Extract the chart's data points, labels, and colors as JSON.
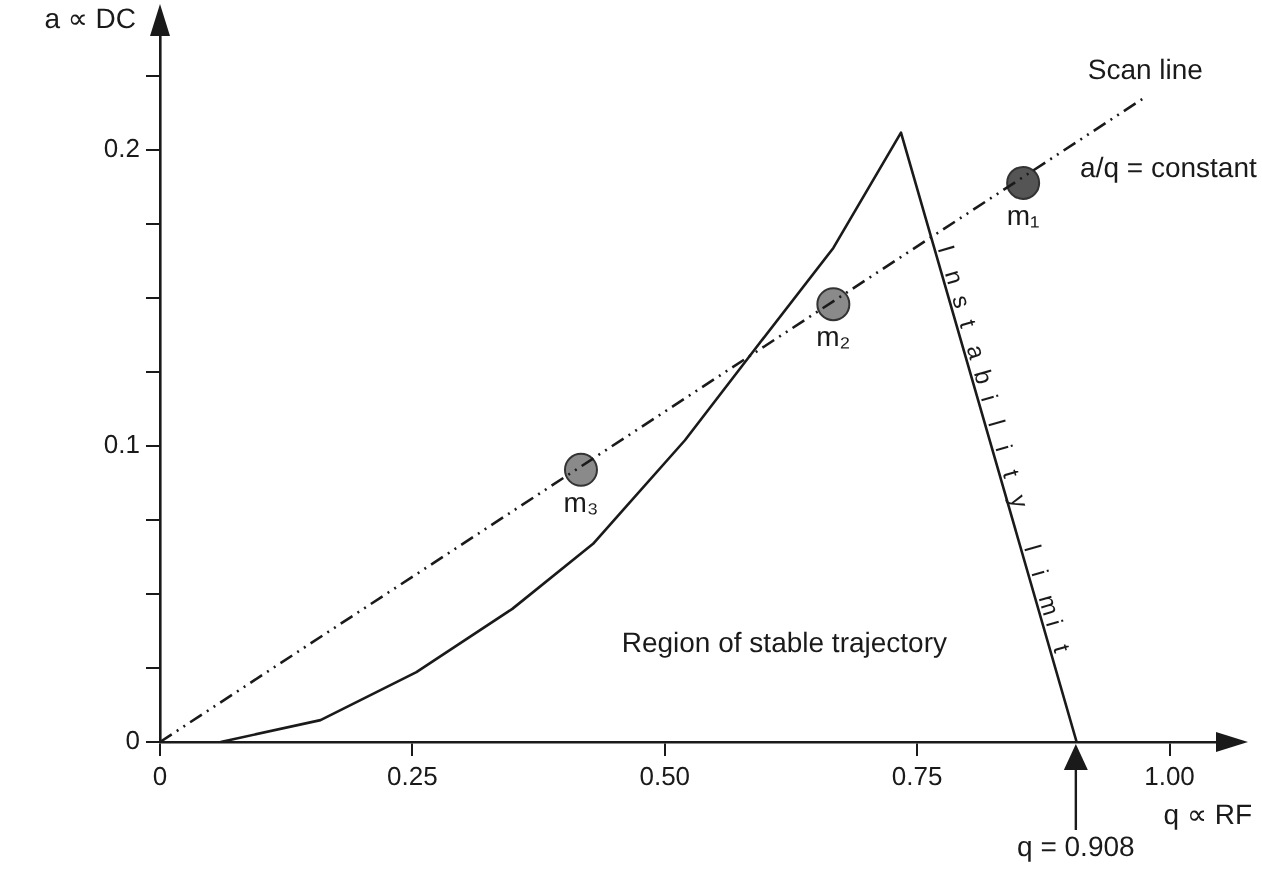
{
  "chart_data": {
    "type": "line",
    "xlabel": "q ∝ RF",
    "ylabel": "a ∝ DC",
    "xlim": [
      0,
      1.05
    ],
    "ylim": [
      0,
      0.24
    ],
    "xticks": [
      0,
      {
        "value": 0.25,
        "label": "0.25"
      },
      {
        "value": 0.5,
        "label": "0.50"
      },
      {
        "value": 0.75,
        "label": "0.75"
      },
      {
        "value": 1,
        "label": "1.00"
      }
    ],
    "yticks": [
      0,
      {
        "value": 0.025,
        "label": null
      },
      {
        "value": 0.05,
        "label": null
      },
      {
        "value": 0.075,
        "label": null
      },
      0.1,
      {
        "value": 0.125,
        "label": null
      },
      {
        "value": 0.15,
        "label": null
      },
      {
        "value": 0.175,
        "label": null
      },
      0.2,
      {
        "value": 0.225,
        "label": null
      }
    ],
    "series": [
      {
        "type": "line",
        "color": "#1a1a1a",
        "x": [
          0.06,
          0.159,
          0.254,
          0.349,
          0.429,
          0.52,
          0.583,
          0.667,
          0.734,
          0.908
        ],
        "values": [
          0,
          0.0074,
          0.0236,
          0.045,
          0.067,
          0.102,
          0.13,
          0.167,
          0.206,
          0
        ]
      },
      {
        "type": "line",
        "name": "Scan line",
        "line_style": "dashed",
        "color": "#1a1a1a",
        "x": [
          0,
          0.976
        ],
        "values": [
          0,
          0.218
        ]
      },
      {
        "type": "scatter",
        "marker": "circle",
        "x": [
          0.855,
          0.667,
          0.417
        ],
        "values": [
          0.189,
          0.148,
          0.092
        ],
        "colors": [
          "#555555",
          "#8a8a8a",
          "#8a8a8a"
        ]
      }
    ],
    "annotations": [
      {
        "text": "m₁",
        "x": 0.855,
        "y": 0.189
      },
      {
        "text": "m₂",
        "x": 0.667,
        "y": 0.148
      },
      {
        "text": "m₃",
        "x": 0.417,
        "y": 0.092
      },
      "a/q = constant",
      "Instability limit",
      "Region of stable trajectory",
      "q = 0.908"
    ]
  }
}
